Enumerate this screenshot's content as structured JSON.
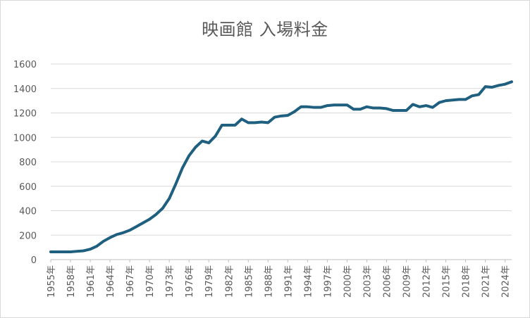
{
  "chart_data": {
    "type": "line",
    "title": "映画館 入場料金",
    "xlabel": "",
    "ylabel": "",
    "ylim": [
      0,
      1600
    ],
    "yticks": [
      0,
      200,
      400,
      600,
      800,
      1000,
      1200,
      1400,
      1600
    ],
    "grid": true,
    "legend": "none",
    "series_color": "#1f5f7f",
    "x": [
      "1955年",
      "1956年",
      "1957年",
      "1958年",
      "1959年",
      "1960年",
      "1961年",
      "1962年",
      "1963年",
      "1964年",
      "1965年",
      "1966年",
      "1967年",
      "1968年",
      "1969年",
      "1970年",
      "1971年",
      "1972年",
      "1973年",
      "1974年",
      "1975年",
      "1976年",
      "1977年",
      "1978年",
      "1979年",
      "1980年",
      "1981年",
      "1982年",
      "1983年",
      "1984年",
      "1985年",
      "1986年",
      "1987年",
      "1988年",
      "1989年",
      "1990年",
      "1991年",
      "1992年",
      "1993年",
      "1994年",
      "1995年",
      "1996年",
      "1997年",
      "1998年",
      "1999年",
      "2000年",
      "2001年",
      "2002年",
      "2003年",
      "2004年",
      "2005年",
      "2006年",
      "2007年",
      "2008年",
      "2009年",
      "2010年",
      "2011年",
      "2012年",
      "2013年",
      "2014年",
      "2015年",
      "2016年",
      "2017年",
      "2018年",
      "2019年",
      "2020年",
      "2021年",
      "2022年",
      "2023年",
      "2024年",
      "2025年"
    ],
    "xtick_labels": [
      "1955年",
      "1958年",
      "1961年",
      "1964年",
      "1967年",
      "1970年",
      "1973年",
      "1976年",
      "1979年",
      "1982年",
      "1985年",
      "1988年",
      "1991年",
      "1994年",
      "1997年",
      "2000年",
      "2003年",
      "2006年",
      "2009年",
      "2012年",
      "2015年",
      "2018年",
      "2021年",
      "2024年"
    ],
    "series": [
      {
        "values": [
          63,
          63,
          63,
          63,
          68,
          72,
          85,
          110,
          150,
          180,
          205,
          220,
          240,
          270,
          300,
          330,
          370,
          420,
          500,
          620,
          750,
          850,
          920,
          970,
          955,
          1010,
          1100,
          1100,
          1100,
          1150,
          1120,
          1120,
          1125,
          1120,
          1165,
          1175,
          1180,
          1210,
          1250,
          1250,
          1245,
          1245,
          1260,
          1265,
          1265,
          1265,
          1230,
          1230,
          1250,
          1240,
          1240,
          1235,
          1220,
          1220,
          1220,
          1270,
          1250,
          1260,
          1245,
          1285,
          1300,
          1305,
          1310,
          1310,
          1340,
          1350,
          1415,
          1410,
          1425,
          1435,
          1455
        ]
      }
    ]
  }
}
